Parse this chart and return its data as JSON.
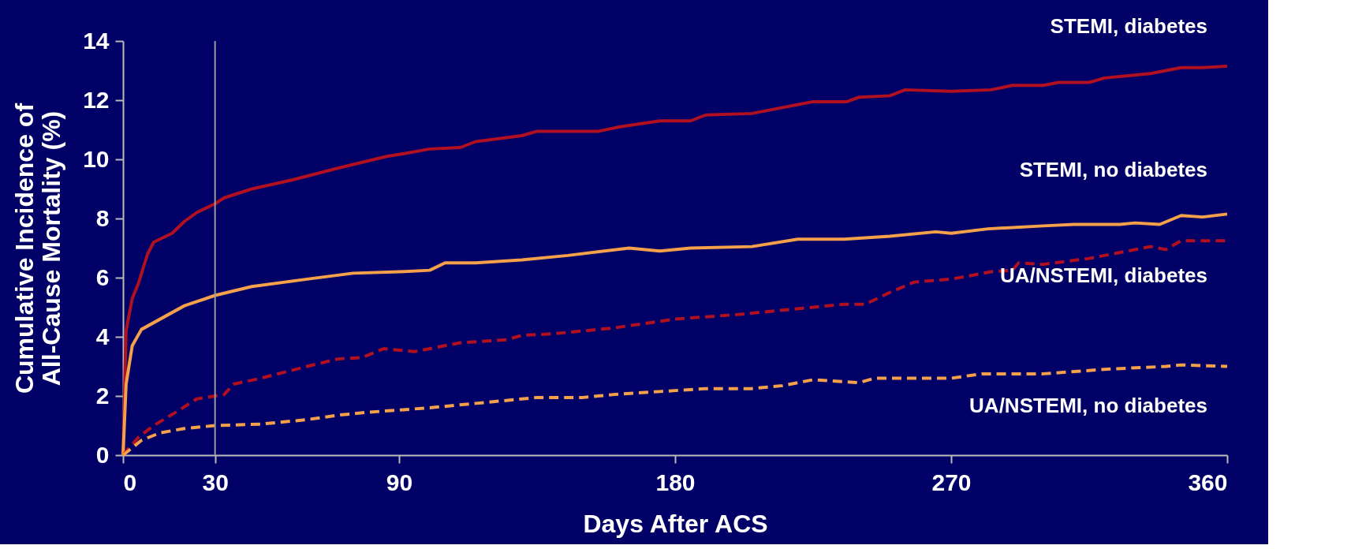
{
  "chart_data": {
    "type": "line",
    "xlabel": "Days After ACS",
    "ylabel": "Cumulative Incidence of\nAll-Cause Mortality (%)",
    "xlim": [
      0,
      360
    ],
    "xticks": [
      0,
      30,
      90,
      180,
      270,
      360
    ],
    "ylim": [
      0,
      14
    ],
    "yticks": [
      0,
      2,
      4,
      6,
      8,
      10,
      12,
      14
    ],
    "grid": false,
    "marker": "none",
    "ref_lines": [
      {
        "axis": "x",
        "value": 30,
        "color": "#9a9a9a"
      }
    ],
    "series": [
      {
        "name": "STEMI, diabetes",
        "color": "#b01020",
        "line_style": "solid",
        "x": [
          0,
          1,
          3,
          5,
          8,
          10,
          16,
          20,
          24,
          30,
          33,
          42,
          55,
          70,
          78,
          86,
          92,
          100,
          110,
          115,
          130,
          135,
          155,
          162,
          175,
          185,
          190,
          205,
          215,
          225,
          236,
          240,
          250,
          255,
          270,
          283,
          290,
          300,
          305,
          315,
          320,
          325,
          335,
          345,
          352,
          360
        ],
        "values": [
          0,
          4.2,
          5.3,
          5.8,
          6.8,
          7.2,
          7.5,
          7.9,
          8.2,
          8.5,
          8.7,
          9.0,
          9.3,
          9.7,
          9.9,
          10.1,
          10.2,
          10.35,
          10.4,
          10.6,
          10.8,
          10.95,
          10.95,
          11.1,
          11.3,
          11.3,
          11.5,
          11.55,
          11.75,
          11.95,
          11.95,
          12.1,
          12.15,
          12.35,
          12.3,
          12.35,
          12.5,
          12.5,
          12.6,
          12.6,
          12.75,
          12.8,
          12.9,
          13.1,
          13.1,
          13.15
        ]
      },
      {
        "name": "STEMI, no diabetes",
        "color": "#f5a04a",
        "line_style": "solid",
        "x": [
          0,
          1,
          3,
          6,
          20,
          30,
          42,
          60,
          75,
          90,
          100,
          105,
          115,
          130,
          145,
          165,
          175,
          185,
          205,
          220,
          235,
          250,
          265,
          270,
          282,
          300,
          310,
          325,
          330,
          338,
          345,
          352,
          360
        ],
        "values": [
          0,
          2.4,
          3.7,
          4.25,
          5.05,
          5.4,
          5.7,
          5.95,
          6.15,
          6.2,
          6.25,
          6.5,
          6.5,
          6.6,
          6.75,
          7.0,
          6.9,
          7.0,
          7.05,
          7.3,
          7.3,
          7.4,
          7.55,
          7.5,
          7.65,
          7.75,
          7.8,
          7.8,
          7.85,
          7.8,
          8.1,
          8.05,
          8.15
        ]
      },
      {
        "name": "UA/NSTEMI, diabetes",
        "color": "#b01020",
        "line_style": "dashed",
        "x": [
          0,
          5,
          10,
          18,
          24,
          30,
          33,
          36,
          45,
          60,
          70,
          78,
          85,
          95,
          110,
          125,
          130,
          140,
          160,
          180,
          200,
          215,
          235,
          242,
          250,
          258,
          270,
          283,
          290,
          292,
          300,
          315,
          335,
          340,
          345,
          360
        ],
        "values": [
          0,
          0.6,
          1.0,
          1.5,
          1.9,
          2.0,
          2.05,
          2.4,
          2.6,
          3.0,
          3.25,
          3.3,
          3.6,
          3.5,
          3.8,
          3.9,
          4.05,
          4.1,
          4.3,
          4.6,
          4.75,
          4.9,
          5.1,
          5.1,
          5.5,
          5.85,
          5.95,
          6.2,
          6.25,
          6.5,
          6.45,
          6.65,
          7.05,
          6.95,
          7.25,
          7.25
        ]
      },
      {
        "name": "UA/NSTEMI, no diabetes",
        "color": "#f5a04a",
        "line_style": "dashed",
        "x": [
          0,
          6,
          12,
          20,
          30,
          45,
          60,
          70,
          80,
          100,
          115,
          135,
          150,
          160,
          175,
          190,
          205,
          215,
          225,
          240,
          245,
          270,
          280,
          300,
          320,
          340,
          345,
          360
        ],
        "values": [
          0,
          0.5,
          0.75,
          0.9,
          1.0,
          1.05,
          1.2,
          1.35,
          1.45,
          1.6,
          1.75,
          1.95,
          1.95,
          2.05,
          2.15,
          2.25,
          2.25,
          2.35,
          2.55,
          2.45,
          2.6,
          2.6,
          2.75,
          2.75,
          2.9,
          3.0,
          3.05,
          3.0
        ]
      }
    ]
  }
}
